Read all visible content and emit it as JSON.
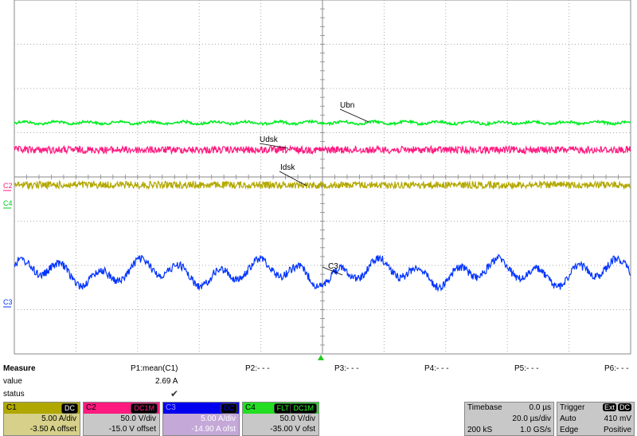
{
  "trace_labels": {
    "ubn": "Ubn",
    "udsk": "Udsk",
    "idsk": "Idsk",
    "c3": "C3"
  },
  "marker_labels": {
    "c2": "C2",
    "c4": "C4",
    "c3": "C3"
  },
  "measure": {
    "title": "Measure",
    "value_label": "value",
    "status_label": "status",
    "columns": [
      "P1:mean(C1)",
      "P2:- - -",
      "P3:- - -",
      "P4:- - -",
      "P5:- - -",
      "P6:- - -"
    ],
    "p1_value": "2.69 A",
    "p1_status": "✔"
  },
  "channels": [
    {
      "name": "C1",
      "coupling": "DC",
      "scale": "5.00 A/div",
      "offset": "-3.50 A offset",
      "color": "#b0a800"
    },
    {
      "name": "C2",
      "coupling": "DC1M",
      "scale": "50.0 V/div",
      "offset": "-15.0 V offset",
      "color": "#ff0080"
    },
    {
      "name": "C3",
      "coupling": "DC",
      "scale": "5.00 A/div",
      "offset": "-14.90 A ofst",
      "color": "#0000ff"
    },
    {
      "name": "C4",
      "coupling_flt": "FLT",
      "coupling": "DC1M",
      "scale": "50.0 V/div",
      "offset": "-35.00 V ofst",
      "color": "#00dd00"
    }
  ],
  "timebase": {
    "label": "Timebase",
    "delay": "0.0 µs",
    "scale": "20.0 µs/div",
    "samples": "200 kS",
    "rate": "1.0 GS/s"
  },
  "trigger": {
    "label": "Trigger",
    "source": "Ext",
    "coupling": "DC",
    "mode": "Auto",
    "level": "410 mV",
    "type": "Edge",
    "slope": "Positive"
  }
}
